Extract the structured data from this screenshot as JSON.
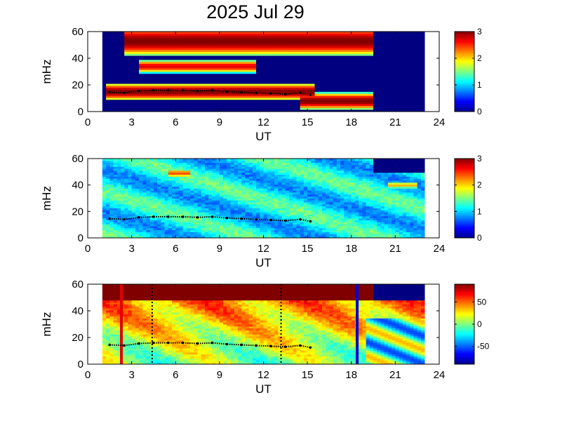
{
  "title": "2025 Jul 29",
  "colors": {
    "jet_low": "#00008f",
    "jet_high": "#800000"
  },
  "chart_data": [
    {
      "type": "heatmap",
      "panel": 1,
      "xlabel": "UT",
      "ylabel": "mHz",
      "xlim": [
        0,
        24
      ],
      "ylim": [
        0,
        60
      ],
      "xticks": [
        "0",
        "3",
        "6",
        "9",
        "12",
        "15",
        "18",
        "21",
        "24"
      ],
      "yticks": [
        "0",
        "20",
        "40",
        "60"
      ],
      "colorbar": {
        "range": [
          0,
          3
        ],
        "ticks": [
          "0",
          "1",
          "2",
          "3"
        ]
      },
      "data_extent_ut": [
        1,
        23
      ],
      "features": [
        {
          "ut_start": 1.2,
          "ut_end": 15.5,
          "mhz_center": 15,
          "mhz_halfwidth": 4,
          "peak": 3.0
        },
        {
          "ut_start": 14.5,
          "ut_end": 19.5,
          "mhz_center": 8,
          "mhz_halfwidth": 4,
          "peak": 3.0
        },
        {
          "ut_start": 2.5,
          "ut_end": 19.5,
          "mhz_center": 53,
          "mhz_halfwidth": 7,
          "peak": 3.0
        },
        {
          "ut_start": 3.5,
          "ut_end": 11.5,
          "mhz_center": 34,
          "mhz_halfwidth": 3,
          "peak": 2.7
        }
      ],
      "trace": [
        [
          1.5,
          14.5
        ],
        [
          2.5,
          14
        ],
        [
          3.5,
          15.5
        ],
        [
          4.5,
          16
        ],
        [
          5.5,
          16
        ],
        [
          6.5,
          16
        ],
        [
          7.5,
          15.5
        ],
        [
          8.5,
          16
        ],
        [
          9.5,
          15
        ],
        [
          10.5,
          14.5
        ],
        [
          11.5,
          14
        ],
        [
          12.5,
          13.5
        ],
        [
          13.5,
          13
        ],
        [
          14.5,
          14
        ],
        [
          15.2,
          12.5
        ]
      ]
    },
    {
      "type": "heatmap",
      "panel": 2,
      "xlabel": "UT",
      "ylabel": "mHz",
      "xlim": [
        0,
        24
      ],
      "ylim": [
        0,
        60
      ],
      "xticks": [
        "0",
        "3",
        "6",
        "9",
        "12",
        "15",
        "18",
        "21",
        "24"
      ],
      "yticks": [
        "0",
        "20",
        "40",
        "60"
      ],
      "colorbar": {
        "range": [
          0,
          3
        ],
        "ticks": [
          "0",
          "1",
          "2",
          "3"
        ]
      },
      "data_extent_ut": [
        1,
        23
      ],
      "background_level": 1.1,
      "features": [
        {
          "ut_start": 5.5,
          "ut_end": 7,
          "mhz_center": 49,
          "mhz_halfwidth": 4,
          "peak": 2.4
        },
        {
          "ut_start": 20.5,
          "ut_end": 22.5,
          "mhz_center": 40,
          "mhz_halfwidth": 3,
          "peak": 2.1
        }
      ],
      "trace": [
        [
          1.5,
          14.5
        ],
        [
          2.5,
          14
        ],
        [
          3.5,
          15.5
        ],
        [
          4.5,
          16
        ],
        [
          5.5,
          16
        ],
        [
          6.5,
          16
        ],
        [
          7.5,
          15.5
        ],
        [
          8.5,
          16
        ],
        [
          9.5,
          15
        ],
        [
          10.5,
          14.5
        ],
        [
          11.5,
          14
        ],
        [
          12.5,
          13.5
        ],
        [
          13.5,
          13
        ],
        [
          14.5,
          14
        ],
        [
          15.2,
          12.5
        ]
      ]
    },
    {
      "type": "heatmap",
      "panel": 3,
      "xlabel": "UT",
      "ylabel": "mHz",
      "xlim": [
        0,
        24
      ],
      "ylim": [
        0,
        60
      ],
      "xticks": [
        "0",
        "3",
        "6",
        "9",
        "12",
        "15",
        "18",
        "21",
        "24"
      ],
      "yticks": [
        "0",
        "20",
        "40",
        "60"
      ],
      "colorbar": {
        "range": [
          -90,
          90
        ],
        "ticks": [
          "50",
          "0",
          "-50"
        ],
        "tick_values": [
          50,
          0,
          -50
        ]
      },
      "data_extent_ut": [
        1,
        23
      ],
      "vertical_lines": [
        {
          "ut": 2.3,
          "style": "solid",
          "color": "#e00000"
        },
        {
          "ut": 4.4,
          "style": "dotted",
          "color": "#000000"
        },
        {
          "ut": 13.2,
          "style": "dotted",
          "color": "#000000"
        },
        {
          "ut": 18.4,
          "style": "solid",
          "color": "#0000d0"
        }
      ],
      "trace": [
        [
          1.5,
          14.5
        ],
        [
          2.5,
          14
        ],
        [
          3.5,
          15.5
        ],
        [
          4.5,
          16
        ],
        [
          5.5,
          16
        ],
        [
          6.5,
          16
        ],
        [
          7.5,
          15.5
        ],
        [
          8.5,
          16
        ],
        [
          9.5,
          15
        ],
        [
          10.5,
          14.5
        ],
        [
          11.5,
          14
        ],
        [
          12.5,
          13.5
        ],
        [
          13.5,
          13
        ],
        [
          14.5,
          14
        ],
        [
          15.2,
          12.5
        ]
      ]
    }
  ]
}
